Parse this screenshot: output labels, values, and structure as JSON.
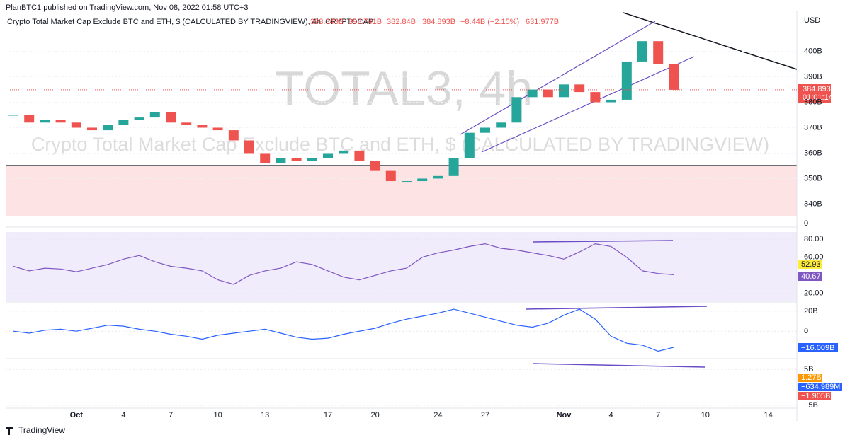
{
  "header": {
    "publisher": "PlanBTC1 published on TradingView.com, Nov 08, 2022 01:58 UTC+3",
    "symbol": "Crypto Total Market Cap Exclude BTC and ETH, $ (CALCULATED BY TRADINGVIEW), 4h, CRYPTOCAP",
    "open": "393.343B",
    "high": "393.741B",
    "low": "382.84B",
    "close": "384.893B",
    "change": "−8.44B (−2.15%)",
    "volume": "631.977B"
  },
  "chart_data": {
    "type": "candlestick",
    "watermark": "TOTAL3, 4h",
    "watermark_subtitle": "Crypto Total Market Cap Exclude BTC and ETH, $ (CALCULATED BY TRADINGVIEW)",
    "currency": "USD",
    "categories": [
      null,
      null,
      null,
      null,
      "Oct",
      null,
      null,
      "4",
      null,
      null,
      "7",
      null,
      null,
      "10",
      null,
      null,
      "13",
      null,
      null,
      null,
      "17",
      null,
      null,
      "20",
      null,
      null,
      null,
      "24",
      null,
      null,
      "27",
      null,
      null,
      null,
      null,
      "Nov",
      null,
      null,
      "4",
      null,
      null,
      "7",
      null,
      null,
      "10",
      null,
      null,
      null,
      "14",
      null
    ],
    "values": [
      375,
      372,
      373,
      372,
      370,
      369,
      371,
      373,
      374,
      376,
      372,
      371,
      370,
      369,
      365,
      360,
      356,
      358,
      357,
      358,
      360,
      361,
      357,
      353,
      349,
      349,
      350,
      351,
      358,
      368,
      370,
      372,
      382,
      385,
      382,
      387,
      384,
      380,
      381,
      396,
      404,
      395,
      384.893,
      null,
      null,
      null,
      null,
      null,
      null,
      null
    ],
    "up_color": "#26a69a",
    "down_color": "#ef5350",
    "ylim": [
      334,
      416
    ],
    "yticks": [
      {
        "value": 340,
        "label": "340B"
      },
      {
        "value": 350,
        "label": "350B"
      },
      {
        "value": 360,
        "label": "360B"
      },
      {
        "value": 370,
        "label": "370B"
      },
      {
        "value": 380,
        "label": "380B"
      },
      {
        "value": 390,
        "label": "390B"
      },
      {
        "value": 400,
        "label": "400B"
      }
    ],
    "last_price_label": "384.893B",
    "countdown": "01:01:14",
    "zero_label": "0",
    "rsi": {
      "values": [
        50,
        45,
        48,
        47,
        44,
        48,
        52,
        58,
        62,
        55,
        50,
        48,
        45,
        35,
        30,
        40,
        45,
        48,
        55,
        52,
        45,
        38,
        35,
        40,
        45,
        48,
        60,
        65,
        68,
        72,
        75,
        70,
        68,
        65,
        62,
        58,
        66,
        75,
        72,
        60,
        45,
        42,
        40.67,
        null,
        null,
        null,
        null,
        null,
        null,
        null
      ],
      "color": "#7e57c2",
      "ylim": [
        12,
        88
      ],
      "yticks": [
        {
          "value": 80,
          "label": "80.00"
        },
        {
          "value": 60,
          "label": "60.00"
        },
        {
          "value": 20,
          "label": "20.00"
        }
      ],
      "ma_label": "52.93",
      "last_label": "40.67"
    },
    "oscillator": {
      "values": [
        0,
        -2,
        1,
        2,
        0,
        3,
        6,
        5,
        2,
        0,
        -3,
        -5,
        -8,
        -4,
        -2,
        0,
        2,
        -2,
        -6,
        -8,
        -7,
        -3,
        0,
        3,
        8,
        12,
        15,
        18,
        22,
        18,
        14,
        10,
        6,
        4,
        8,
        16,
        22,
        12,
        -5,
        -12,
        -14,
        -20,
        -16.009,
        null,
        null,
        null,
        null,
        null,
        null,
        null
      ],
      "color": "#2962ff",
      "ylim": [
        -26,
        27
      ],
      "yticks": [
        {
          "value": 20,
          "label": "20B"
        },
        0
      ],
      "last_label": "−16.009B"
    },
    "macd": {
      "ylim": [
        -5.4,
        7.4
      ],
      "yticks": [
        {
          "value": 5,
          "label": "5B"
        },
        {
          "value": -5,
          "label": "−5B"
        }
      ],
      "labels": [
        "1.27B",
        "−634.989M",
        "−1.905B"
      ]
    }
  },
  "footer": {
    "brand": "TradingView"
  }
}
